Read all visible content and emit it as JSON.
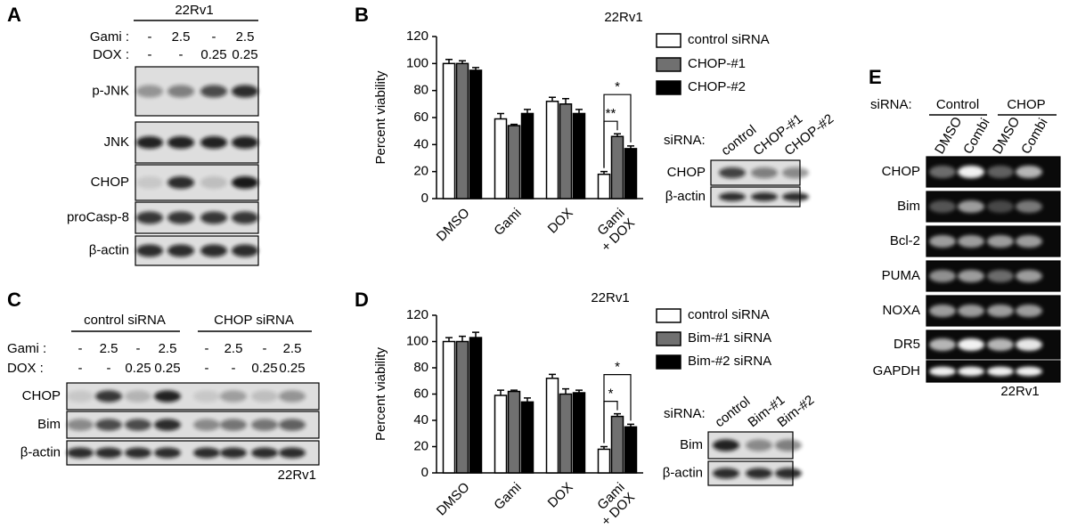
{
  "panels": {
    "a": {
      "label": "A",
      "cell_line": "22Rv1",
      "gami_label": "Gami :",
      "gami": [
        "-",
        "2.5",
        "-",
        "2.5"
      ],
      "dox_label": "DOX :",
      "dox": [
        "-",
        "-",
        "0.25",
        "0.25"
      ],
      "blots": [
        "p-JNK",
        "JNK",
        "CHOP",
        "proCasp-8",
        "β-actin"
      ]
    },
    "b": {
      "label": "B",
      "inset": {
        "sirna_label": "siRNA:",
        "lanes": [
          "control",
          "CHOP-#1",
          "CHOP-#2"
        ],
        "blots": [
          "CHOP",
          "β-actin"
        ]
      }
    },
    "c": {
      "label": "C",
      "groups": [
        "control siRNA",
        "CHOP siRNA"
      ],
      "gami_label": "Gami :",
      "gami": [
        "-",
        "2.5",
        "-",
        "2.5",
        "-",
        "2.5",
        "-",
        "2.5"
      ],
      "dox_label": "DOX :",
      "dox": [
        "-",
        "-",
        "0.25",
        "0.25",
        "-",
        "-",
        "0.25",
        "0.25"
      ],
      "blots": [
        "CHOP",
        "Bim",
        "β-actin"
      ],
      "cell_line": "22Rv1"
    },
    "d": {
      "label": "D",
      "inset": {
        "sirna_label": "siRNA:",
        "lanes": [
          "control",
          "Bim-#1",
          "Bim-#2"
        ],
        "blots": [
          "Bim",
          "β-actin"
        ]
      }
    },
    "e": {
      "label": "E",
      "sirna_label": "siRNA:",
      "groups": [
        "Control",
        "CHOP"
      ],
      "lanes": [
        "DMSO",
        "Combi",
        "DMSO",
        "Combi"
      ],
      "blots": [
        "CHOP",
        "Bim",
        "Bcl-2",
        "PUMA",
        "NOXA",
        "DR5",
        "GAPDH"
      ],
      "cell_line": "22Rv1"
    }
  },
  "chart_data": [
    {
      "type": "bar",
      "title": "22Rv1",
      "y_label": "Percent viability",
      "categories": [
        "DMSO",
        "Gami",
        "DOX",
        "Gami + DOX"
      ],
      "series": [
        {
          "name": "control siRNA",
          "color": "#ffffff",
          "values": [
            100,
            59,
            72,
            18
          ],
          "errors": [
            3,
            4,
            3,
            2
          ]
        },
        {
          "name": "CHOP-#1",
          "color": "#707070",
          "values": [
            100,
            54,
            70,
            46
          ],
          "errors": [
            2,
            1,
            4,
            2
          ]
        },
        {
          "name": "CHOP-#2",
          "color": "#000000",
          "values": [
            95,
            63,
            63,
            37
          ],
          "errors": [
            2,
            3,
            3,
            2
          ]
        }
      ],
      "ylim": [
        0,
        120
      ],
      "yticks": [
        0,
        20,
        40,
        60,
        80,
        100,
        120
      ],
      "annotations": [
        "**",
        "*"
      ]
    },
    {
      "type": "bar",
      "title": "22Rv1",
      "y_label": "Percent viability",
      "categories": [
        "DMSO",
        "Gami",
        "DOX",
        "Gami + DOX"
      ],
      "series": [
        {
          "name": "control siRNA",
          "color": "#ffffff",
          "values": [
            100,
            59,
            72,
            18
          ],
          "errors": [
            3,
            4,
            3,
            2
          ]
        },
        {
          "name": "Bim-#1 siRNA",
          "color": "#707070",
          "values": [
            100,
            62,
            60,
            43
          ],
          "errors": [
            4,
            1,
            4,
            2
          ]
        },
        {
          "name": "Bim-#2 siRNA",
          "color": "#000000",
          "values": [
            103,
            54,
            61,
            35
          ],
          "errors": [
            4,
            3,
            2,
            2
          ]
        }
      ],
      "ylim": [
        0,
        120
      ],
      "yticks": [
        0,
        20,
        40,
        60,
        80,
        100,
        120
      ],
      "annotations": [
        "*",
        "*"
      ]
    }
  ]
}
